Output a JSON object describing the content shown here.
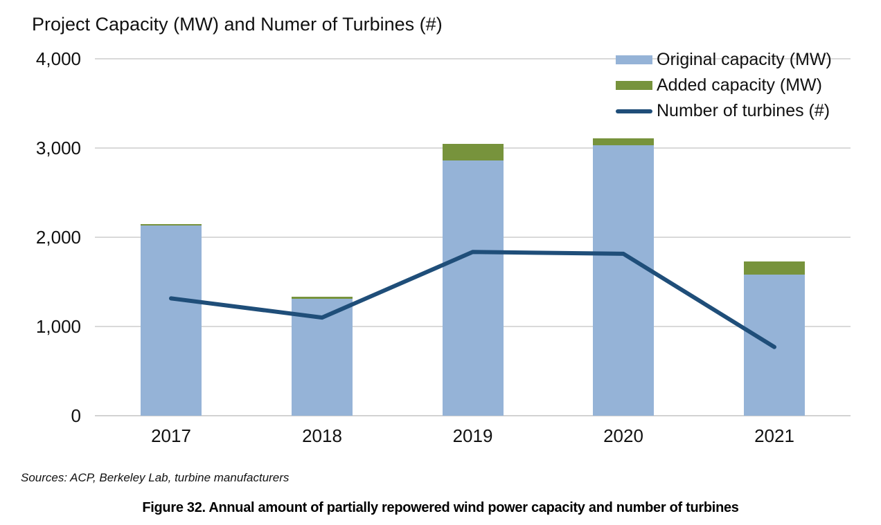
{
  "chart_title": "Project Capacity (MW) and Numer of Turbines (#)",
  "sources_text": "Sources: ACP, Berkeley Lab, turbine manufacturers",
  "caption_text": "Figure 32. Annual amount of partially repowered wind power capacity and number of turbines",
  "legend": {
    "original_label": "Original capacity (MW)",
    "added_label": "Added capacity (MW)",
    "turbines_label": "Number of turbines (#)"
  },
  "colors": {
    "original_bar": "#95B3D7",
    "added_bar": "#77933C",
    "turbines_line": "#1F4E79",
    "gridline": "#D9D9D9",
    "axis_line": "#D2D2D2"
  },
  "chart_data": {
    "type": "bar",
    "subtype": "stacked-bars-with-line",
    "title": "Project Capacity (MW) and Numer of Turbines (#)",
    "categories": [
      "2017",
      "2018",
      "2019",
      "2020",
      "2021"
    ],
    "series": [
      {
        "name": "Original capacity (MW)",
        "type": "bar",
        "stack": "capacity",
        "values": [
          2130,
          1310,
          2860,
          3030,
          1580
        ]
      },
      {
        "name": "Added capacity (MW)",
        "type": "bar",
        "stack": "capacity",
        "values": [
          20,
          20,
          190,
          75,
          145
        ]
      },
      {
        "name": "Number of turbines (#)",
        "type": "line",
        "values": [
          1315,
          1100,
          1835,
          1815,
          770
        ]
      }
    ],
    "xlabel": "",
    "ylabel": "",
    "ylim": [
      0,
      4000
    ],
    "yticks": {
      "values": [
        4000,
        3000,
        2000,
        1000,
        0
      ],
      "labels": [
        "4,000",
        "3,000",
        "2,000",
        "1,000",
        "0"
      ]
    },
    "grid": true,
    "legend_position": "top-right"
  }
}
